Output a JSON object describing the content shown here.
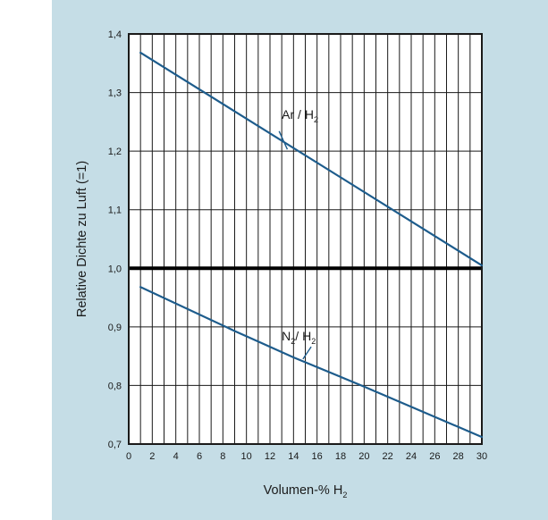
{
  "colors": {
    "panel_background": "#c5dde6",
    "plot_background": "#ffffff",
    "grid": "#1a1a1a",
    "series_line": "#1d5c8c",
    "baseline": "#000000"
  },
  "chart_data": {
    "type": "line",
    "title": "",
    "xlabel": {
      "text": "Volumen-% H",
      "sub": "2"
    },
    "ylabel": "Relative Dichte zu Luft (=1)",
    "xlim": [
      0,
      30
    ],
    "ylim": [
      0.7,
      1.4
    ],
    "x_ticks": [
      0,
      2,
      4,
      6,
      8,
      10,
      12,
      14,
      16,
      18,
      20,
      22,
      24,
      26,
      28,
      30
    ],
    "x_tick_labels": [
      "0",
      "2",
      "4",
      "6",
      "8",
      "10",
      "12",
      "14",
      "16",
      "18",
      "20",
      "22",
      "24",
      "26",
      "28",
      "30"
    ],
    "x_gridlines": [
      0,
      1,
      2,
      3,
      4,
      5,
      6,
      7,
      8,
      9,
      10,
      11,
      12,
      13,
      14,
      15,
      16,
      17,
      18,
      19,
      20,
      21,
      22,
      23,
      24,
      25,
      26,
      27,
      28,
      29,
      30
    ],
    "y_ticks": [
      0.7,
      0.8,
      0.9,
      1.0,
      1.1,
      1.2,
      1.3,
      1.4
    ],
    "y_tick_labels": [
      "0,7",
      "0,8",
      "0,9",
      "1,0",
      "1,1",
      "1,2",
      "1,3",
      "1,4"
    ],
    "grid": true,
    "reference_line": {
      "y": 1.0
    },
    "series": [
      {
        "label_main": "Ar / H",
        "label_sub": "2",
        "x": [
          1,
          30
        ],
        "y": [
          1.368,
          1.005
        ]
      },
      {
        "label_main": "N",
        "label_sub_1": "2",
        "label_mid": "/ H",
        "label_sub_2": "2",
        "x": [
          1,
          9,
          14,
          20,
          30
        ],
        "y": [
          0.968,
          0.893,
          0.848,
          0.798,
          0.712
        ]
      }
    ]
  }
}
